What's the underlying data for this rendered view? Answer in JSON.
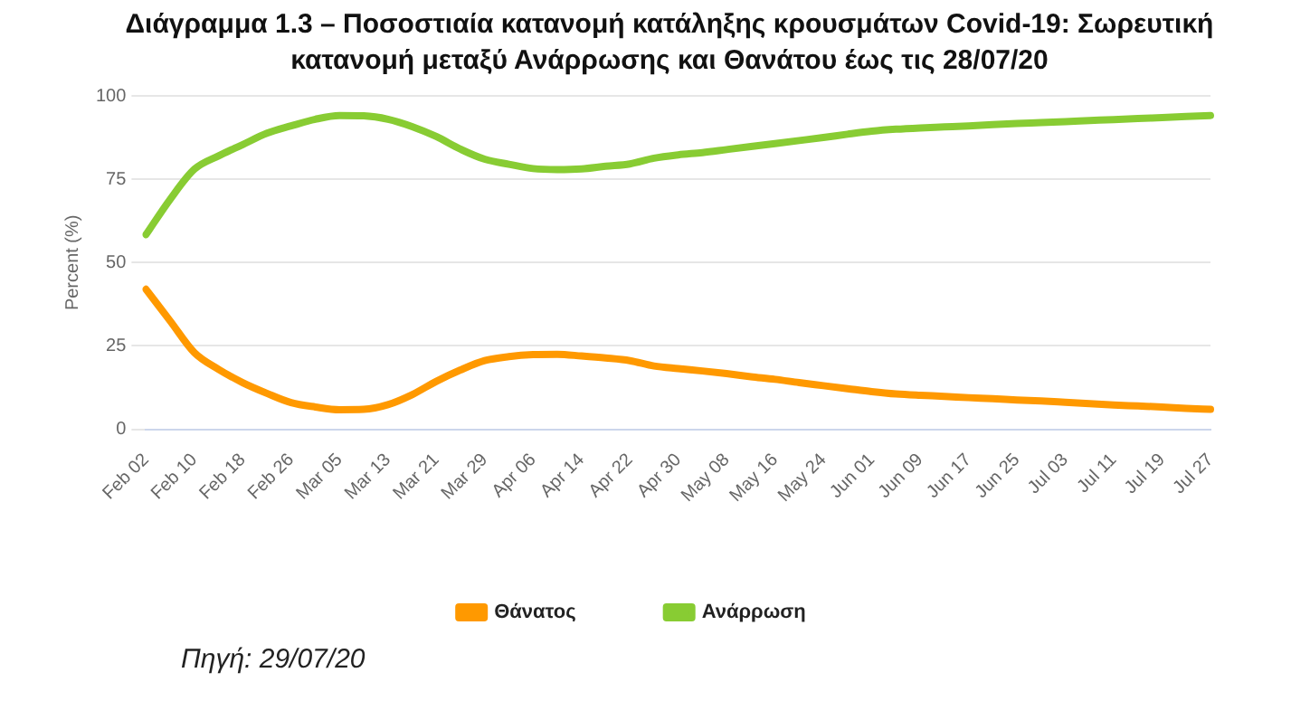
{
  "chart_data": {
    "type": "line",
    "title": "Διάγραμμα 1.3 – Ποσοστιαία κατανομή κατάληξης κρουσμάτων Covid-19: Σωρευτική κατανομή μεταξύ Ανάρρωσης και Θανάτου έως τις 28/07/20",
    "ylabel": "Percent (%)",
    "categories": [
      "Feb 02",
      null,
      "Feb 10",
      null,
      "Feb 18",
      null,
      "Feb 26",
      null,
      "Mar 05",
      null,
      "Mar 13",
      null,
      "Mar 21",
      null,
      "Mar 29",
      null,
      "Apr 06",
      null,
      "Apr 14",
      null,
      "Apr 22",
      null,
      "Apr 30",
      null,
      "May 08",
      null,
      "May 16",
      null,
      "May 24",
      null,
      "Jun 01",
      null,
      "Jun 09",
      null,
      "Jun 17",
      null,
      "Jun 25",
      null,
      "Jul 03",
      null,
      "Jul 11",
      null,
      "Jul 19",
      null,
      "Jul 27"
    ],
    "series": [
      {
        "name": "Θάνατος",
        "color": "#ff9900",
        "values": [
          42,
          32.5,
          23,
          18,
          14,
          10.8,
          8,
          6.7,
          5.9,
          6,
          7.4,
          10.4,
          14.4,
          17.8,
          20.6,
          21.8,
          22.4,
          22.5,
          22,
          21.4,
          20.6,
          19,
          18.2,
          17.5,
          16.7,
          15.8,
          15,
          14,
          13.1,
          12.2,
          11.3,
          10.6,
          10.2,
          9.9,
          9.5,
          9.2,
          8.8,
          8.5,
          8.1,
          7.7,
          7.3,
          7,
          6.7,
          6.3,
          6
        ]
      },
      {
        "name": "Ανάρρωση",
        "color": "#88cc33",
        "values": [
          58.4,
          69,
          78,
          82,
          85.4,
          88.8,
          91,
          93,
          94.1,
          94,
          93,
          90.8,
          87.8,
          84,
          81,
          79.5,
          78.2,
          77.9,
          78.1,
          78.9,
          79.6,
          81.3,
          82.3,
          83,
          83.9,
          84.8,
          85.7,
          86.6,
          87.5,
          88.5,
          89.4,
          90,
          90.4,
          90.7,
          91,
          91.4,
          91.7,
          92,
          92.3,
          92.6,
          92.9,
          93.2,
          93.5,
          93.8,
          94.1
        ]
      }
    ],
    "ylim": [
      0,
      100
    ],
    "yticks": [
      0,
      25,
      50,
      75,
      100
    ],
    "grid": "y",
    "legend": "bottom",
    "marker": "none",
    "line_style": "solid",
    "annotations": [
      "Πηγή: 29/07/20"
    ]
  }
}
